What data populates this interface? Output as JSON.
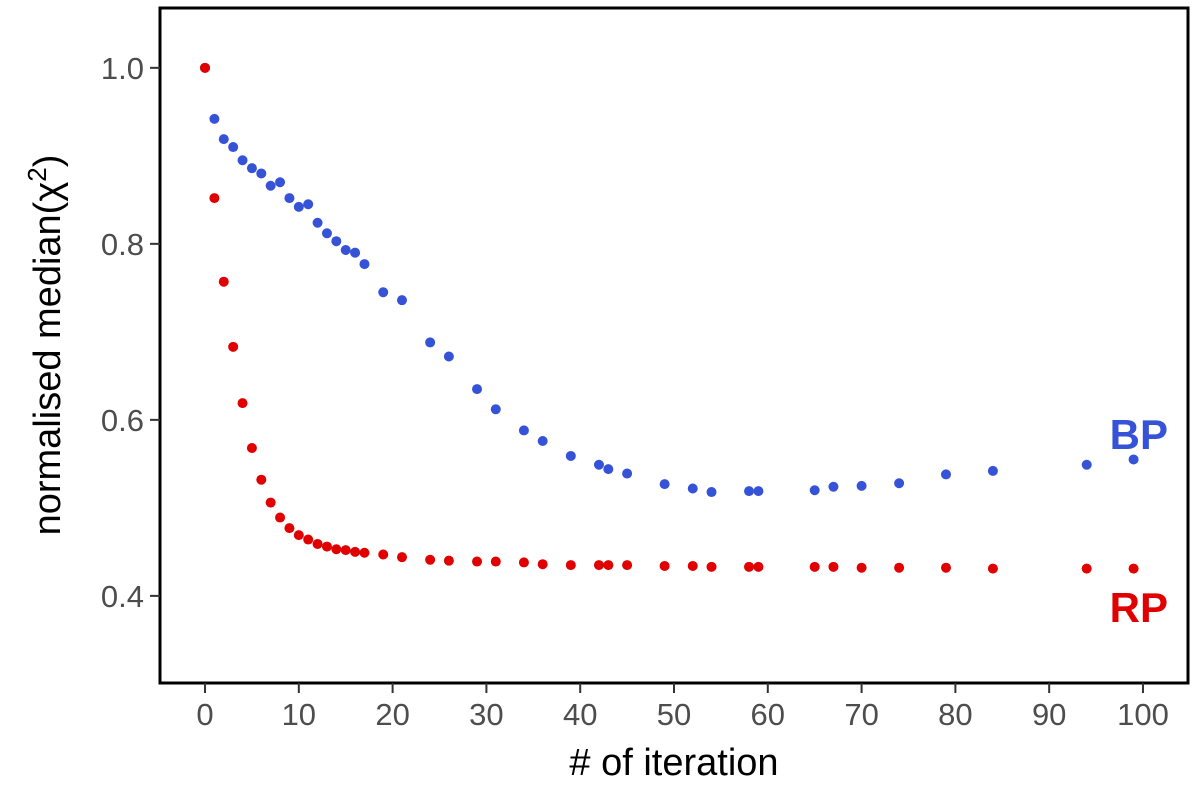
{
  "chart_data": {
    "type": "scatter",
    "title": "",
    "xlabel": "# of iteration",
    "ylabel_main": "normalised median(χ",
    "ylabel_sup": "2",
    "ylabel_end": ")",
    "xlim": [
      -4.8,
      104.8
    ],
    "ylim": [
      0.301,
      1.068
    ],
    "xticks": [
      0,
      10,
      20,
      30,
      40,
      50,
      60,
      70,
      80,
      90,
      100
    ],
    "yticks": [
      0.4,
      0.6,
      0.8,
      1.0
    ],
    "ytick_labels": [
      "0.4",
      "0.6",
      "0.8",
      "1.0"
    ],
    "grid": false,
    "x": [
      0,
      1,
      2,
      3,
      4,
      5,
      6,
      7,
      8,
      9,
      10,
      11,
      12,
      13,
      14,
      15,
      16,
      17,
      19,
      21,
      24,
      26,
      29,
      31,
      34,
      36,
      39,
      42,
      43,
      45,
      49,
      52,
      54,
      58,
      59,
      65,
      67,
      70,
      74,
      79,
      84,
      94,
      99
    ],
    "series": [
      {
        "name": "BP",
        "color": "#3653d8",
        "values": [
          1.0,
          0.942,
          0.919,
          0.91,
          0.895,
          0.886,
          0.88,
          0.866,
          0.87,
          0.852,
          0.842,
          0.845,
          0.824,
          0.812,
          0.803,
          0.793,
          0.79,
          0.777,
          0.745,
          0.736,
          0.688,
          0.672,
          0.635,
          0.612,
          0.588,
          0.576,
          0.559,
          0.549,
          0.544,
          0.539,
          0.527,
          0.522,
          0.518,
          0.519,
          0.519,
          0.52,
          0.524,
          0.525,
          0.528,
          0.538,
          0.542,
          0.549,
          0.555
        ]
      },
      {
        "name": "RP",
        "color": "#e00000",
        "values": [
          1.0,
          0.852,
          0.757,
          0.683,
          0.619,
          0.568,
          0.532,
          0.506,
          0.489,
          0.477,
          0.469,
          0.464,
          0.459,
          0.456,
          0.453,
          0.452,
          0.45,
          0.449,
          0.447,
          0.444,
          0.441,
          0.44,
          0.439,
          0.439,
          0.438,
          0.436,
          0.435,
          0.435,
          0.435,
          0.435,
          0.434,
          0.434,
          0.433,
          0.433,
          0.433,
          0.433,
          0.433,
          0.432,
          0.432,
          0.432,
          0.431,
          0.431,
          0.431
        ]
      }
    ]
  }
}
